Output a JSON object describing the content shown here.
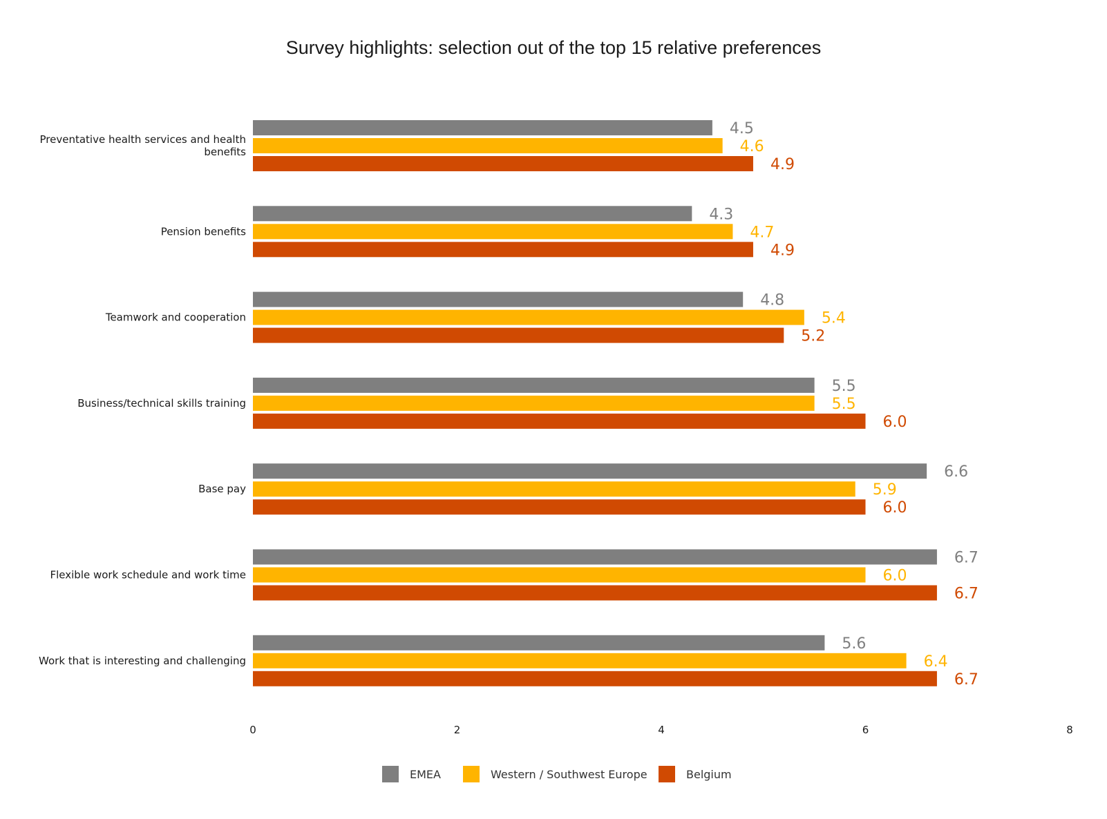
{
  "chart_data": {
    "type": "bar",
    "orientation": "horizontal",
    "title": "Survey highlights: selection out of the top 15 relative preferences",
    "categories": [
      "Preventative health services and health benefits",
      "Pension benefits",
      "Teamwork and cooperation",
      "Business/technical skills training",
      "Base pay",
      "Flexible work schedule and work time",
      "Work that is interesting and challenging"
    ],
    "series": [
      {
        "name": "EMEA",
        "color": "#7f7f7f",
        "values": [
          4.5,
          4.3,
          4.8,
          5.5,
          6.6,
          6.7,
          5.6
        ],
        "labels": [
          "4.5",
          "4.3",
          "4.8",
          "5.5",
          "6.6",
          "6.7",
          "5.6"
        ]
      },
      {
        "name": "Western / Southwest Europe",
        "color": "#ffb400",
        "values": [
          4.6,
          4.7,
          5.4,
          5.5,
          5.9,
          6.0,
          6.4
        ],
        "labels": [
          "4.6",
          "4.7",
          "5.4",
          "5.5",
          "5.9",
          "6.0",
          "6.4"
        ]
      },
      {
        "name": "Belgium",
        "color": "#d04a02",
        "values": [
          4.9,
          4.9,
          5.2,
          6.0,
          6.0,
          6.7,
          6.7
        ],
        "labels": [
          "4.9",
          "4.9",
          "5.2",
          "6.0",
          "6.0",
          "6.7",
          "6.7"
        ]
      }
    ],
    "xlim": [
      0,
      8
    ],
    "xticks": [
      "0",
      "2",
      "4",
      "6",
      "8"
    ],
    "xlabel": "",
    "ylabel": "",
    "grid": false,
    "legend_position": "bottom"
  }
}
